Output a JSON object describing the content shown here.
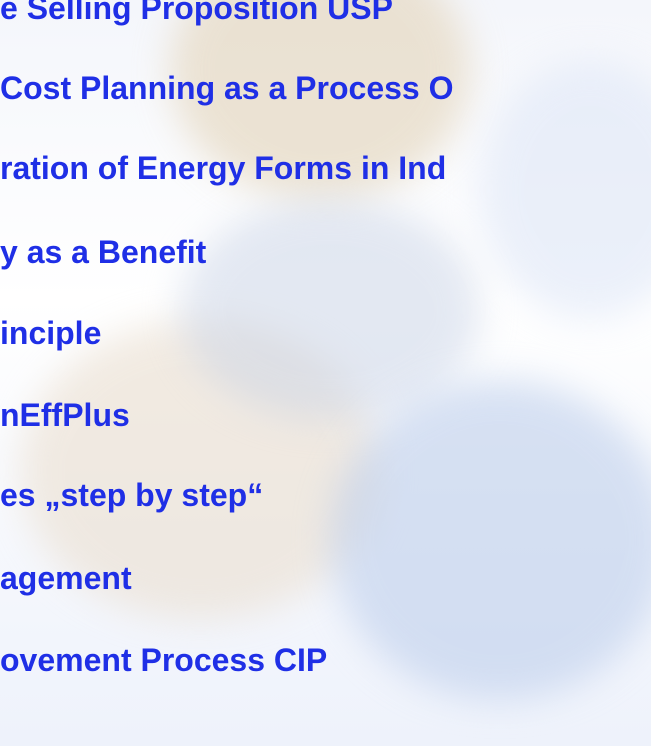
{
  "slide": {
    "items": [
      "e Selling Proposition USP",
      "Cost Planning as a Process O",
      "ration of Energy Forms in Ind",
      "y as a Benefit",
      "inciple",
      "nEffPlus",
      "es „step by step“",
      "agement",
      "ovement Process CIP"
    ]
  }
}
